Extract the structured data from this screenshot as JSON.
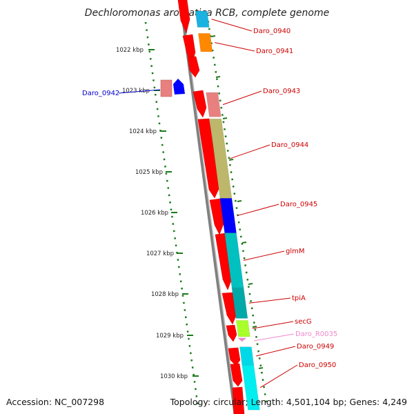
{
  "title": "Dechloromonas aromatica RCB, complete genome",
  "footer": {
    "accession": "Accession: NC_007298",
    "summary": "Topology: circular; Length: 4,501,104 bp; Genes: 4,249"
  },
  "colors": {
    "cds": "#ff0000",
    "tick": "#1a7a1a",
    "backbone": "#808080",
    "label_red": "#cc0000",
    "label_blue": "#0000cc",
    "label_pink": "#ee88cc"
  },
  "kbp_labels": [
    "1022 kbp",
    "1023 kbp",
    "1024 kbp",
    "1025 kbp",
    "1026 kbp",
    "1027 kbp",
    "1028 kbp",
    "1029 kbp",
    "1030 kbp"
  ],
  "genes": [
    {
      "name": "Daro_0940",
      "color": "#1ab2e0",
      "start_kbp": 1021.05,
      "end_kbp": 1021.45
    },
    {
      "name": "Daro_0941",
      "color": "#ff8800",
      "start_kbp": 1021.6,
      "end_kbp": 1022.05
    },
    {
      "name": "Daro_0942",
      "color": "#0000ff",
      "start_kbp": 1022.9,
      "end_kbp": 1023.25
    },
    {
      "name": "Daro_0943",
      "color": "#e88080",
      "start_kbp": 1023.05,
      "end_kbp": 1023.65
    },
    {
      "name": "Daro_0944",
      "color": "#bdb76b",
      "start_kbp": 1023.7,
      "end_kbp": 1025.65
    },
    {
      "name": "Daro_0945",
      "color": "#0000ff",
      "start_kbp": 1025.65,
      "end_kbp": 1026.5
    },
    {
      "name": "glmM",
      "color": "#00c0c0",
      "start_kbp": 1026.5,
      "end_kbp": 1027.85
    },
    {
      "name": "tpiA",
      "color": "#00a8a8",
      "start_kbp": 1027.85,
      "end_kbp": 1028.6
    },
    {
      "name": "secG",
      "color": "#a8ff2a",
      "start_kbp": 1028.65,
      "end_kbp": 1029.05
    },
    {
      "name": "Daro_R0035",
      "color": "#ee88cc",
      "start_kbp": 1029.1,
      "end_kbp": 1029.2
    },
    {
      "name": "Daro_0949",
      "color": "#00d8e8",
      "start_kbp": 1029.3,
      "end_kbp": 1029.75
    },
    {
      "name": "Daro_0950",
      "color": "#00eef0",
      "start_kbp": 1029.75,
      "end_kbp": 1030.85
    }
  ]
}
